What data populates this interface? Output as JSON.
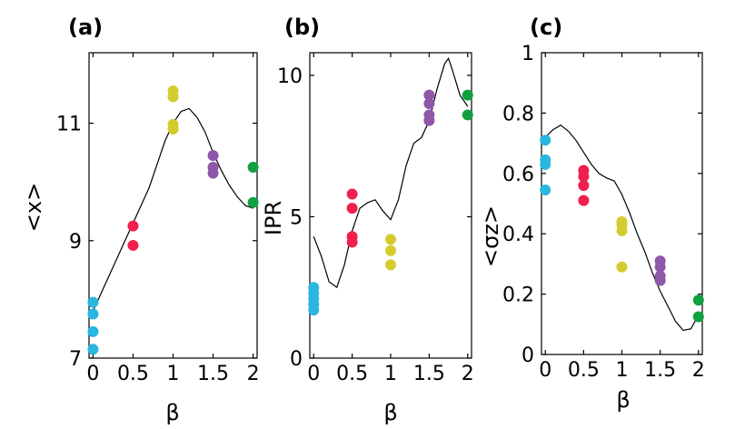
{
  "colors": {
    "beta_0": "#29b6e0",
    "beta_0.5": "#ef1f4e",
    "beta_1": "#d4cc2e",
    "beta_1.5": "#8e57a8",
    "beta_2": "#10a040",
    "curve": "#000000"
  },
  "chart_data": [
    {
      "panel_label": "(a)",
      "type": "scatter",
      "ylabel": "<x>",
      "xlabel": "β",
      "xlim": [
        -0.05,
        2.05
      ],
      "ylim": [
        7,
        12.2
      ],
      "xticks": [
        0,
        0.5,
        1,
        1.5,
        2
      ],
      "xtick_labels": [
        "0",
        "0.5",
        "1",
        "1.5",
        "2"
      ],
      "yticks": [
        7,
        9,
        11
      ],
      "ytick_labels": [
        "7",
        "9",
        "11"
      ],
      "series": [
        {
          "name": "β=0",
          "color_key": "beta_0",
          "x": [
            0,
            0,
            0,
            0
          ],
          "y": [
            7.95,
            7.75,
            7.45,
            7.15
          ]
        },
        {
          "name": "β=0.5",
          "color_key": "beta_0.5",
          "x": [
            0.5,
            0.5
          ],
          "y": [
            9.25,
            8.92
          ]
        },
        {
          "name": "β=1",
          "color_key": "beta_1",
          "x": [
            1,
            1,
            1,
            1
          ],
          "y": [
            11.55,
            11.45,
            10.98,
            10.9
          ]
        },
        {
          "name": "β=1.5",
          "color_key": "beta_1.5",
          "x": [
            1.5,
            1.5,
            1.5
          ],
          "y": [
            10.45,
            10.25,
            10.15
          ]
        },
        {
          "name": "β=2",
          "color_key": "beta_2",
          "x": [
            2,
            2
          ],
          "y": [
            10.25,
            9.65
          ]
        }
      ],
      "curve": {
        "x": [
          0,
          0.1,
          0.2,
          0.3,
          0.4,
          0.5,
          0.6,
          0.7,
          0.8,
          0.9,
          1.0,
          1.1,
          1.2,
          1.3,
          1.4,
          1.5,
          1.6,
          1.7,
          1.8,
          1.9,
          2.0
        ],
        "y": [
          7.8,
          8.1,
          8.4,
          8.7,
          9.0,
          9.3,
          9.6,
          9.9,
          10.3,
          10.7,
          11.0,
          11.2,
          11.25,
          11.1,
          10.85,
          10.5,
          10.2,
          9.95,
          9.75,
          9.6,
          9.55
        ]
      }
    },
    {
      "panel_label": "(b)",
      "type": "scatter",
      "ylabel": "IPR",
      "xlabel": "β",
      "xlim": [
        -0.05,
        2.05
      ],
      "ylim": [
        0,
        10.8
      ],
      "xticks": [
        0,
        0.5,
        1,
        1.5,
        2
      ],
      "xtick_labels": [
        "0",
        "0.5",
        "1",
        "1.5",
        "2"
      ],
      "yticks": [
        0,
        5,
        10
      ],
      "ytick_labels": [
        "0",
        "5",
        "10"
      ],
      "series": [
        {
          "name": "β=0",
          "color_key": "beta_0",
          "x": [
            0,
            0,
            0,
            0,
            0
          ],
          "y": [
            2.5,
            2.3,
            2.1,
            1.9,
            1.7
          ]
        },
        {
          "name": "β=0.5",
          "color_key": "beta_0.5",
          "x": [
            0.5,
            0.5,
            0.5,
            0.5
          ],
          "y": [
            5.8,
            5.3,
            4.3,
            4.1
          ]
        },
        {
          "name": "β=1",
          "color_key": "beta_1",
          "x": [
            1,
            1,
            1
          ],
          "y": [
            4.2,
            3.8,
            3.3
          ]
        },
        {
          "name": "β=1.5",
          "color_key": "beta_1.5",
          "x": [
            1.5,
            1.5,
            1.5,
            1.5
          ],
          "y": [
            9.3,
            9.0,
            8.6,
            8.4
          ]
        },
        {
          "name": "β=2",
          "color_key": "beta_2",
          "x": [
            2,
            2
          ],
          "y": [
            9.3,
            8.6
          ]
        }
      ],
      "curve": {
        "x": [
          0,
          0.1,
          0.2,
          0.3,
          0.4,
          0.5,
          0.6,
          0.7,
          0.8,
          0.9,
          1.0,
          1.1,
          1.2,
          1.3,
          1.4,
          1.5,
          1.6,
          1.7,
          1.75,
          1.8,
          1.9,
          2.0
        ],
        "y": [
          4.3,
          3.6,
          2.7,
          2.5,
          3.3,
          4.5,
          5.3,
          5.5,
          5.6,
          5.2,
          4.9,
          5.6,
          6.8,
          7.6,
          7.8,
          8.4,
          9.5,
          10.4,
          10.6,
          10.2,
          9.3,
          8.9
        ]
      }
    },
    {
      "panel_label": "(c)",
      "type": "scatter",
      "ylabel": "<σz>",
      "xlabel": "β",
      "xlim": [
        -0.05,
        2.05
      ],
      "ylim": [
        0,
        1
      ],
      "xticks": [
        0,
        0.5,
        1,
        1.5,
        2
      ],
      "xtick_labels": [
        "0",
        "0.5",
        "1",
        "1.5",
        "2"
      ],
      "yticks": [
        0,
        0.2,
        0.4,
        0.6,
        0.8,
        1
      ],
      "ytick_labels": [
        "0",
        "0.2",
        "0.4",
        "0.6",
        "0.8",
        "1"
      ],
      "series": [
        {
          "name": "β=0",
          "color_key": "beta_0",
          "x": [
            0,
            0,
            0,
            0
          ],
          "y": [
            0.71,
            0.645,
            0.63,
            0.545
          ]
        },
        {
          "name": "β=0.5",
          "color_key": "beta_0.5",
          "x": [
            0.5,
            0.5,
            0.5,
            0.5
          ],
          "y": [
            0.61,
            0.59,
            0.56,
            0.51
          ]
        },
        {
          "name": "β=1",
          "color_key": "beta_1",
          "x": [
            1,
            1,
            1,
            1
          ],
          "y": [
            0.44,
            0.43,
            0.41,
            0.29
          ]
        },
        {
          "name": "β=1.5",
          "color_key": "beta_1.5",
          "x": [
            1.5,
            1.5,
            1.5,
            1.5
          ],
          "y": [
            0.31,
            0.29,
            0.26,
            0.245
          ]
        },
        {
          "name": "β=2",
          "color_key": "beta_2",
          "x": [
            2,
            2
          ],
          "y": [
            0.18,
            0.125
          ]
        }
      ],
      "curve": {
        "x": [
          0,
          0.1,
          0.2,
          0.3,
          0.4,
          0.5,
          0.6,
          0.7,
          0.8,
          0.9,
          1.0,
          1.1,
          1.2,
          1.3,
          1.4,
          1.5,
          1.6,
          1.7,
          1.8,
          1.9,
          2.0
        ],
        "y": [
          0.72,
          0.745,
          0.76,
          0.74,
          0.71,
          0.67,
          0.63,
          0.6,
          0.585,
          0.575,
          0.53,
          0.47,
          0.4,
          0.34,
          0.27,
          0.21,
          0.16,
          0.11,
          0.08,
          0.085,
          0.13
        ]
      }
    }
  ]
}
